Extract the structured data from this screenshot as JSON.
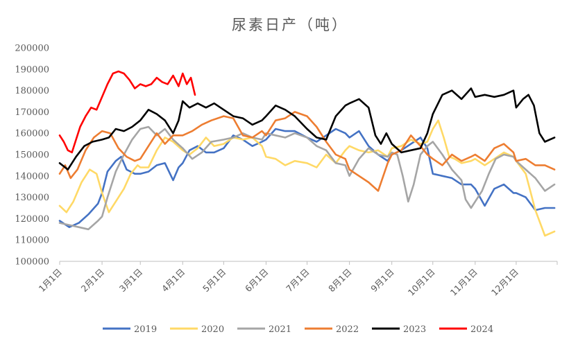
{
  "chart_data": {
    "type": "line",
    "title": "尿素日产（吨）",
    "xlabel": "",
    "ylabel": "",
    "ylim": [
      100000,
      200000
    ],
    "ytick_values": [
      100000,
      110000,
      120000,
      130000,
      140000,
      150000,
      160000,
      170000,
      180000,
      190000,
      200000
    ],
    "ytick_labels": [
      "100000",
      "110000",
      "120000",
      "130000",
      "140000",
      "150000",
      "160000",
      "170000",
      "180000",
      "190000",
      "200000"
    ],
    "xlim": [
      1,
      365
    ],
    "xtick_values": [
      1,
      32,
      60,
      91,
      121,
      152,
      182,
      213,
      244,
      274,
      305,
      335
    ],
    "xtick_labels": [
      "1月1日",
      "2月1日",
      "3月1日",
      "4月1日",
      "5月1日",
      "6月1日",
      "7月1日",
      "8月1日",
      "9月1日",
      "10月1日",
      "11月1日",
      "12月1日"
    ],
    "grid": false,
    "legend_position": "bottom",
    "series": [
      {
        "name": "2019",
        "color": "#4472C4",
        "x": [
          1,
          8,
          15,
          22,
          29,
          32,
          36,
          42,
          46,
          50,
          56,
          60,
          66,
          72,
          78,
          84,
          88,
          91,
          96,
          102,
          108,
          114,
          121,
          128,
          135,
          142,
          149,
          152,
          159,
          166,
          173,
          182,
          189,
          196,
          203,
          210,
          213,
          220,
          227,
          234,
          241,
          244,
          251,
          258,
          265,
          270,
          274,
          281,
          288,
          295,
          302,
          305,
          312,
          319,
          326,
          333,
          335,
          342,
          349,
          356,
          363
        ],
        "y": [
          119000,
          116000,
          118000,
          122000,
          127000,
          132000,
          142000,
          147000,
          149000,
          143000,
          141000,
          141000,
          142000,
          145000,
          146000,
          138000,
          144000,
          146000,
          152000,
          154000,
          151000,
          151000,
          153000,
          159000,
          157000,
          154000,
          156000,
          157000,
          162000,
          161000,
          161000,
          158000,
          156000,
          159000,
          162000,
          160000,
          158000,
          161000,
          154000,
          150000,
          147000,
          150000,
          152000,
          155000,
          158000,
          153000,
          141000,
          140000,
          139000,
          136000,
          136000,
          134000,
          126000,
          134000,
          136000,
          132000,
          132000,
          130000,
          124000,
          125000,
          125000
        ]
      },
      {
        "name": "2020",
        "color": "#FFD966",
        "x": [
          1,
          6,
          11,
          17,
          23,
          28,
          32,
          37,
          42,
          48,
          53,
          58,
          60,
          66,
          72,
          78,
          84,
          91,
          96,
          102,
          108,
          114,
          121,
          128,
          135,
          142,
          149,
          152,
          159,
          166,
          173,
          182,
          189,
          196,
          203,
          210,
          213,
          220,
          227,
          234,
          241,
          244,
          251,
          258,
          265,
          270,
          274,
          278,
          282,
          286,
          290,
          295,
          302,
          305,
          312,
          319,
          326,
          333,
          335,
          342,
          349,
          356,
          363
        ],
        "y": [
          126000,
          123000,
          128000,
          137000,
          143000,
          141000,
          132000,
          123000,
          128000,
          134000,
          141000,
          145000,
          144000,
          144000,
          152000,
          158000,
          156000,
          152000,
          150000,
          153000,
          158000,
          154000,
          155000,
          158000,
          157000,
          158000,
          154000,
          149000,
          148000,
          145000,
          147000,
          146000,
          144000,
          150000,
          146000,
          152000,
          154000,
          152000,
          151000,
          152000,
          149000,
          153000,
          154000,
          157000,
          155000,
          156000,
          162000,
          166000,
          158000,
          149000,
          148000,
          146000,
          147000,
          148000,
          145000,
          148000,
          151000,
          149000,
          147000,
          141000,
          124000,
          112000,
          114000
        ]
      },
      {
        "name": "2021",
        "color": "#A5A5A5",
        "x": [
          1,
          8,
          15,
          22,
          29,
          32,
          36,
          42,
          48,
          54,
          60,
          66,
          72,
          78,
          84,
          91,
          98,
          105,
          112,
          121,
          128,
          135,
          142,
          149,
          152,
          159,
          166,
          173,
          182,
          189,
          196,
          203,
          210,
          213,
          220,
          227,
          234,
          241,
          244,
          248,
          252,
          256,
          260,
          265,
          270,
          274,
          281,
          288,
          295,
          298,
          302,
          305,
          310,
          315,
          320,
          326,
          333,
          335,
          342,
          349,
          356,
          363
        ],
        "y": [
          118000,
          117000,
          116000,
          115000,
          119000,
          121000,
          130000,
          142000,
          150000,
          157000,
          162000,
          163000,
          159000,
          162000,
          157000,
          153000,
          148000,
          151000,
          156000,
          157000,
          158000,
          160000,
          158000,
          157000,
          160000,
          159000,
          158000,
          160000,
          158000,
          154000,
          152000,
          146000,
          145000,
          140000,
          148000,
          153000,
          150000,
          149000,
          151000,
          150000,
          140000,
          128000,
          136000,
          150000,
          154000,
          156000,
          150000,
          143000,
          138000,
          129000,
          125000,
          128000,
          133000,
          141000,
          148000,
          150000,
          149000,
          147000,
          143000,
          139000,
          133000,
          136000
        ]
      },
      {
        "name": "2022",
        "color": "#ED7D31",
        "x": [
          1,
          5,
          9,
          14,
          20,
          26,
          32,
          38,
          44,
          50,
          56,
          60,
          66,
          72,
          78,
          84,
          91,
          98,
          105,
          112,
          121,
          128,
          135,
          142,
          149,
          152,
          159,
          166,
          173,
          182,
          189,
          196,
          203,
          210,
          213,
          220,
          227,
          234,
          241,
          244,
          251,
          258,
          265,
          270,
          274,
          281,
          288,
          295,
          302,
          305,
          312,
          319,
          326,
          333,
          335,
          342,
          349,
          356,
          363
        ],
        "y": [
          141000,
          145000,
          139000,
          143000,
          152000,
          158000,
          161000,
          160000,
          153000,
          149000,
          147000,
          148000,
          154000,
          160000,
          155000,
          159000,
          159000,
          161000,
          164000,
          166000,
          168000,
          167000,
          159000,
          158000,
          161000,
          159000,
          166000,
          167000,
          170000,
          168000,
          163000,
          156000,
          150000,
          148000,
          143000,
          140000,
          137000,
          133000,
          146000,
          150000,
          152000,
          159000,
          154000,
          150000,
          148000,
          145000,
          150000,
          147000,
          149000,
          150000,
          147000,
          153000,
          155000,
          151000,
          147000,
          148000,
          145000,
          145000,
          143000
        ]
      },
      {
        "name": "2023",
        "color": "#000000",
        "x": [
          1,
          7,
          13,
          19,
          25,
          32,
          37,
          42,
          48,
          54,
          60,
          66,
          72,
          78,
          84,
          88,
          91,
          96,
          102,
          108,
          114,
          121,
          128,
          135,
          142,
          149,
          152,
          159,
          166,
          173,
          182,
          189,
          196,
          203,
          210,
          213,
          220,
          227,
          232,
          236,
          240,
          244,
          251,
          258,
          265,
          270,
          274,
          281,
          288,
          295,
          302,
          305,
          312,
          319,
          326,
          333,
          335,
          340,
          344,
          348,
          352,
          356,
          363
        ],
        "y": [
          146000,
          143000,
          149000,
          154000,
          156000,
          157000,
          158000,
          162000,
          161000,
          163000,
          166000,
          171000,
          169000,
          166000,
          160000,
          166000,
          175000,
          172000,
          174000,
          172000,
          174000,
          171000,
          168000,
          167000,
          164000,
          166000,
          168000,
          173000,
          171000,
          168000,
          162000,
          158000,
          157000,
          168000,
          173000,
          174000,
          176000,
          172000,
          159000,
          155000,
          160000,
          155000,
          151000,
          152000,
          153000,
          160000,
          169000,
          178000,
          180000,
          176000,
          181000,
          177000,
          178000,
          177000,
          178000,
          180000,
          172000,
          176000,
          178000,
          173000,
          160000,
          156000,
          158000
        ]
      },
      {
        "name": "2024",
        "color": "#FF0000",
        "x": [
          1,
          4,
          7,
          10,
          13,
          16,
          20,
          24,
          28,
          32,
          36,
          40,
          44,
          48,
          52,
          56,
          60,
          64,
          68,
          72,
          76,
          80,
          84,
          88,
          91,
          94,
          97,
          100
        ],
        "y": [
          159000,
          156000,
          152000,
          151000,
          157000,
          163000,
          168000,
          172000,
          171000,
          177000,
          183000,
          188000,
          189000,
          188000,
          185000,
          181000,
          183000,
          182000,
          183000,
          186000,
          184000,
          183000,
          187000,
          182000,
          188000,
          183000,
          186000,
          178000
        ]
      }
    ]
  }
}
